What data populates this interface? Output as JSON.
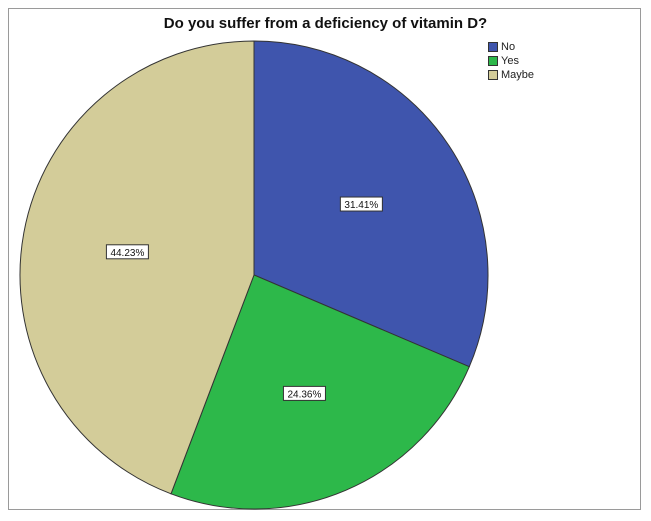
{
  "chart_data": {
    "type": "pie",
    "title": "Do you suffer from a deficiency of vitamin D?",
    "slices": [
      {
        "label": "No",
        "value": 31.41,
        "display": "31.41%",
        "color": "#3f55ad"
      },
      {
        "label": "Yes",
        "value": 24.36,
        "display": "24.36%",
        "color": "#2db84a"
      },
      {
        "label": "Maybe",
        "value": 44.23,
        "display": "44.23%",
        "color": "#d3cc99"
      }
    ],
    "start_angle": "12 o'clock",
    "direction": "clockwise",
    "legend_position": "top-right",
    "slice_border_color": "#333333"
  }
}
